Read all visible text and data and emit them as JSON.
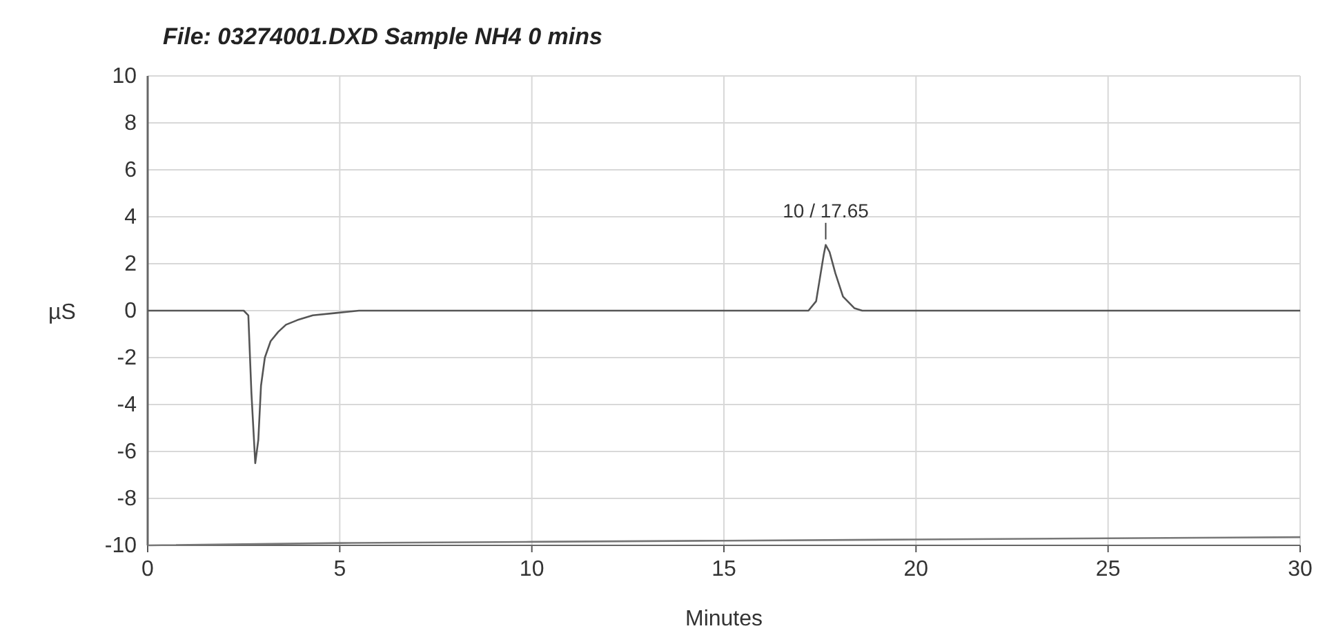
{
  "chart_data": {
    "type": "line",
    "title": "File: 03274001.DXD Sample NH4 0 mins",
    "xlabel": "Minutes",
    "ylabel": "µS",
    "xlim": [
      0,
      30
    ],
    "ylim": [
      -10,
      10
    ],
    "xticks": [
      0,
      5,
      10,
      15,
      20,
      25,
      30
    ],
    "yticks": [
      -10,
      -8,
      -6,
      -4,
      -2,
      0,
      2,
      4,
      6,
      8,
      10
    ],
    "grid": true,
    "series": [
      {
        "color": "#555555",
        "x": [
          0,
          2.5,
          2.62,
          2.7,
          2.8,
          2.88,
          2.95,
          3.05,
          3.2,
          3.4,
          3.6,
          3.9,
          4.3,
          4.9,
          5.5,
          10,
          15,
          17.2,
          17.4,
          17.5,
          17.6,
          17.65,
          17.75,
          17.9,
          18.1,
          18.4,
          18.6,
          20,
          25,
          30
        ],
        "values": [
          0,
          0,
          -0.2,
          -3.5,
          -6.5,
          -5.5,
          -3.2,
          -2,
          -1.3,
          -0.9,
          -0.6,
          -0.4,
          -0.2,
          -0.1,
          0,
          0,
          0,
          0,
          0.4,
          1.4,
          2.4,
          2.8,
          2.5,
          1.6,
          0.6,
          0.1,
          0,
          0,
          0,
          0
        ]
      },
      {
        "color": "#777777",
        "x": [
          0,
          5,
          10,
          15,
          20,
          25,
          30
        ],
        "values": [
          -10,
          -9.9,
          -9.85,
          -9.8,
          -9.75,
          -9.7,
          -9.65
        ]
      }
    ],
    "annotations": [
      {
        "text": "10 / 17.65",
        "x": 17.65,
        "y": 2.8
      }
    ]
  }
}
